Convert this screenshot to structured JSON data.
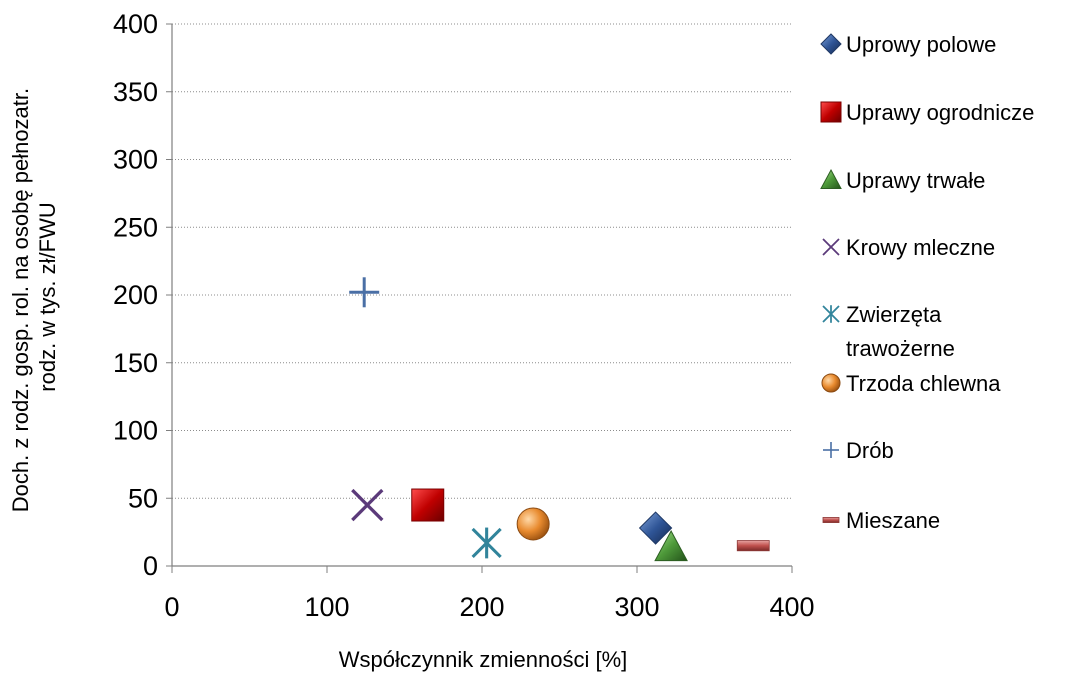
{
  "chart_data": {
    "type": "scatter",
    "title": "",
    "xlabel": "Współczynnik zmienności [%]",
    "ylabel_lines": [
      "Doch. z rodz. gosp. rol. na osobę pełnozatr.",
      "rodz. w tys. zł/FWU"
    ],
    "xlim": [
      0,
      400
    ],
    "ylim": [
      0,
      400
    ],
    "xticks": [
      "0",
      "100",
      "200",
      "300",
      "400"
    ],
    "yticks": [
      "0",
      "50",
      "100",
      "150",
      "200",
      "250",
      "300",
      "350",
      "400"
    ],
    "grid": "horizontal-dotted",
    "legend_position": "right",
    "series": [
      {
        "name": "Uprowy polowe",
        "name_lines": [
          "Uprowy polowe"
        ],
        "marker": "diamond",
        "color": "#2f5597",
        "x": 312,
        "y": 28
      },
      {
        "name": "Uprawy ogrodnicze",
        "name_lines": [
          "Uprawy ogrodnicze"
        ],
        "marker": "square",
        "color": "#c00000",
        "x": 165,
        "y": 45
      },
      {
        "name": "Uprawy trwałe",
        "name_lines": [
          "Uprawy trwałe"
        ],
        "marker": "triangle",
        "color": "#4e9a3a",
        "x": 322,
        "y": 14
      },
      {
        "name": "Krowy mleczne",
        "name_lines": [
          " Krowy mleczne"
        ],
        "marker": "x",
        "color": "#5b3a7a",
        "x": 126,
        "y": 45
      },
      {
        "name": "Zwierzęta trawożerne",
        "name_lines": [
          "Zwierzęta",
          "trawożerne"
        ],
        "marker": "asterisk",
        "color": "#31849b",
        "x": 203,
        "y": 17
      },
      {
        "name": "Trzoda chlewna",
        "name_lines": [
          "Trzoda chlewna"
        ],
        "marker": "circle",
        "color": "#e88a2e",
        "x": 233,
        "y": 31
      },
      {
        "name": "Drób",
        "name_lines": [
          "Drób"
        ],
        "marker": "plus",
        "color": "#4a6fa5",
        "x": 124,
        "y": 202
      },
      {
        "name": "Mieszane",
        "name_lines": [
          "Mieszane"
        ],
        "marker": "dash",
        "color": "#c0504d",
        "x": 375,
        "y": 15
      }
    ]
  }
}
